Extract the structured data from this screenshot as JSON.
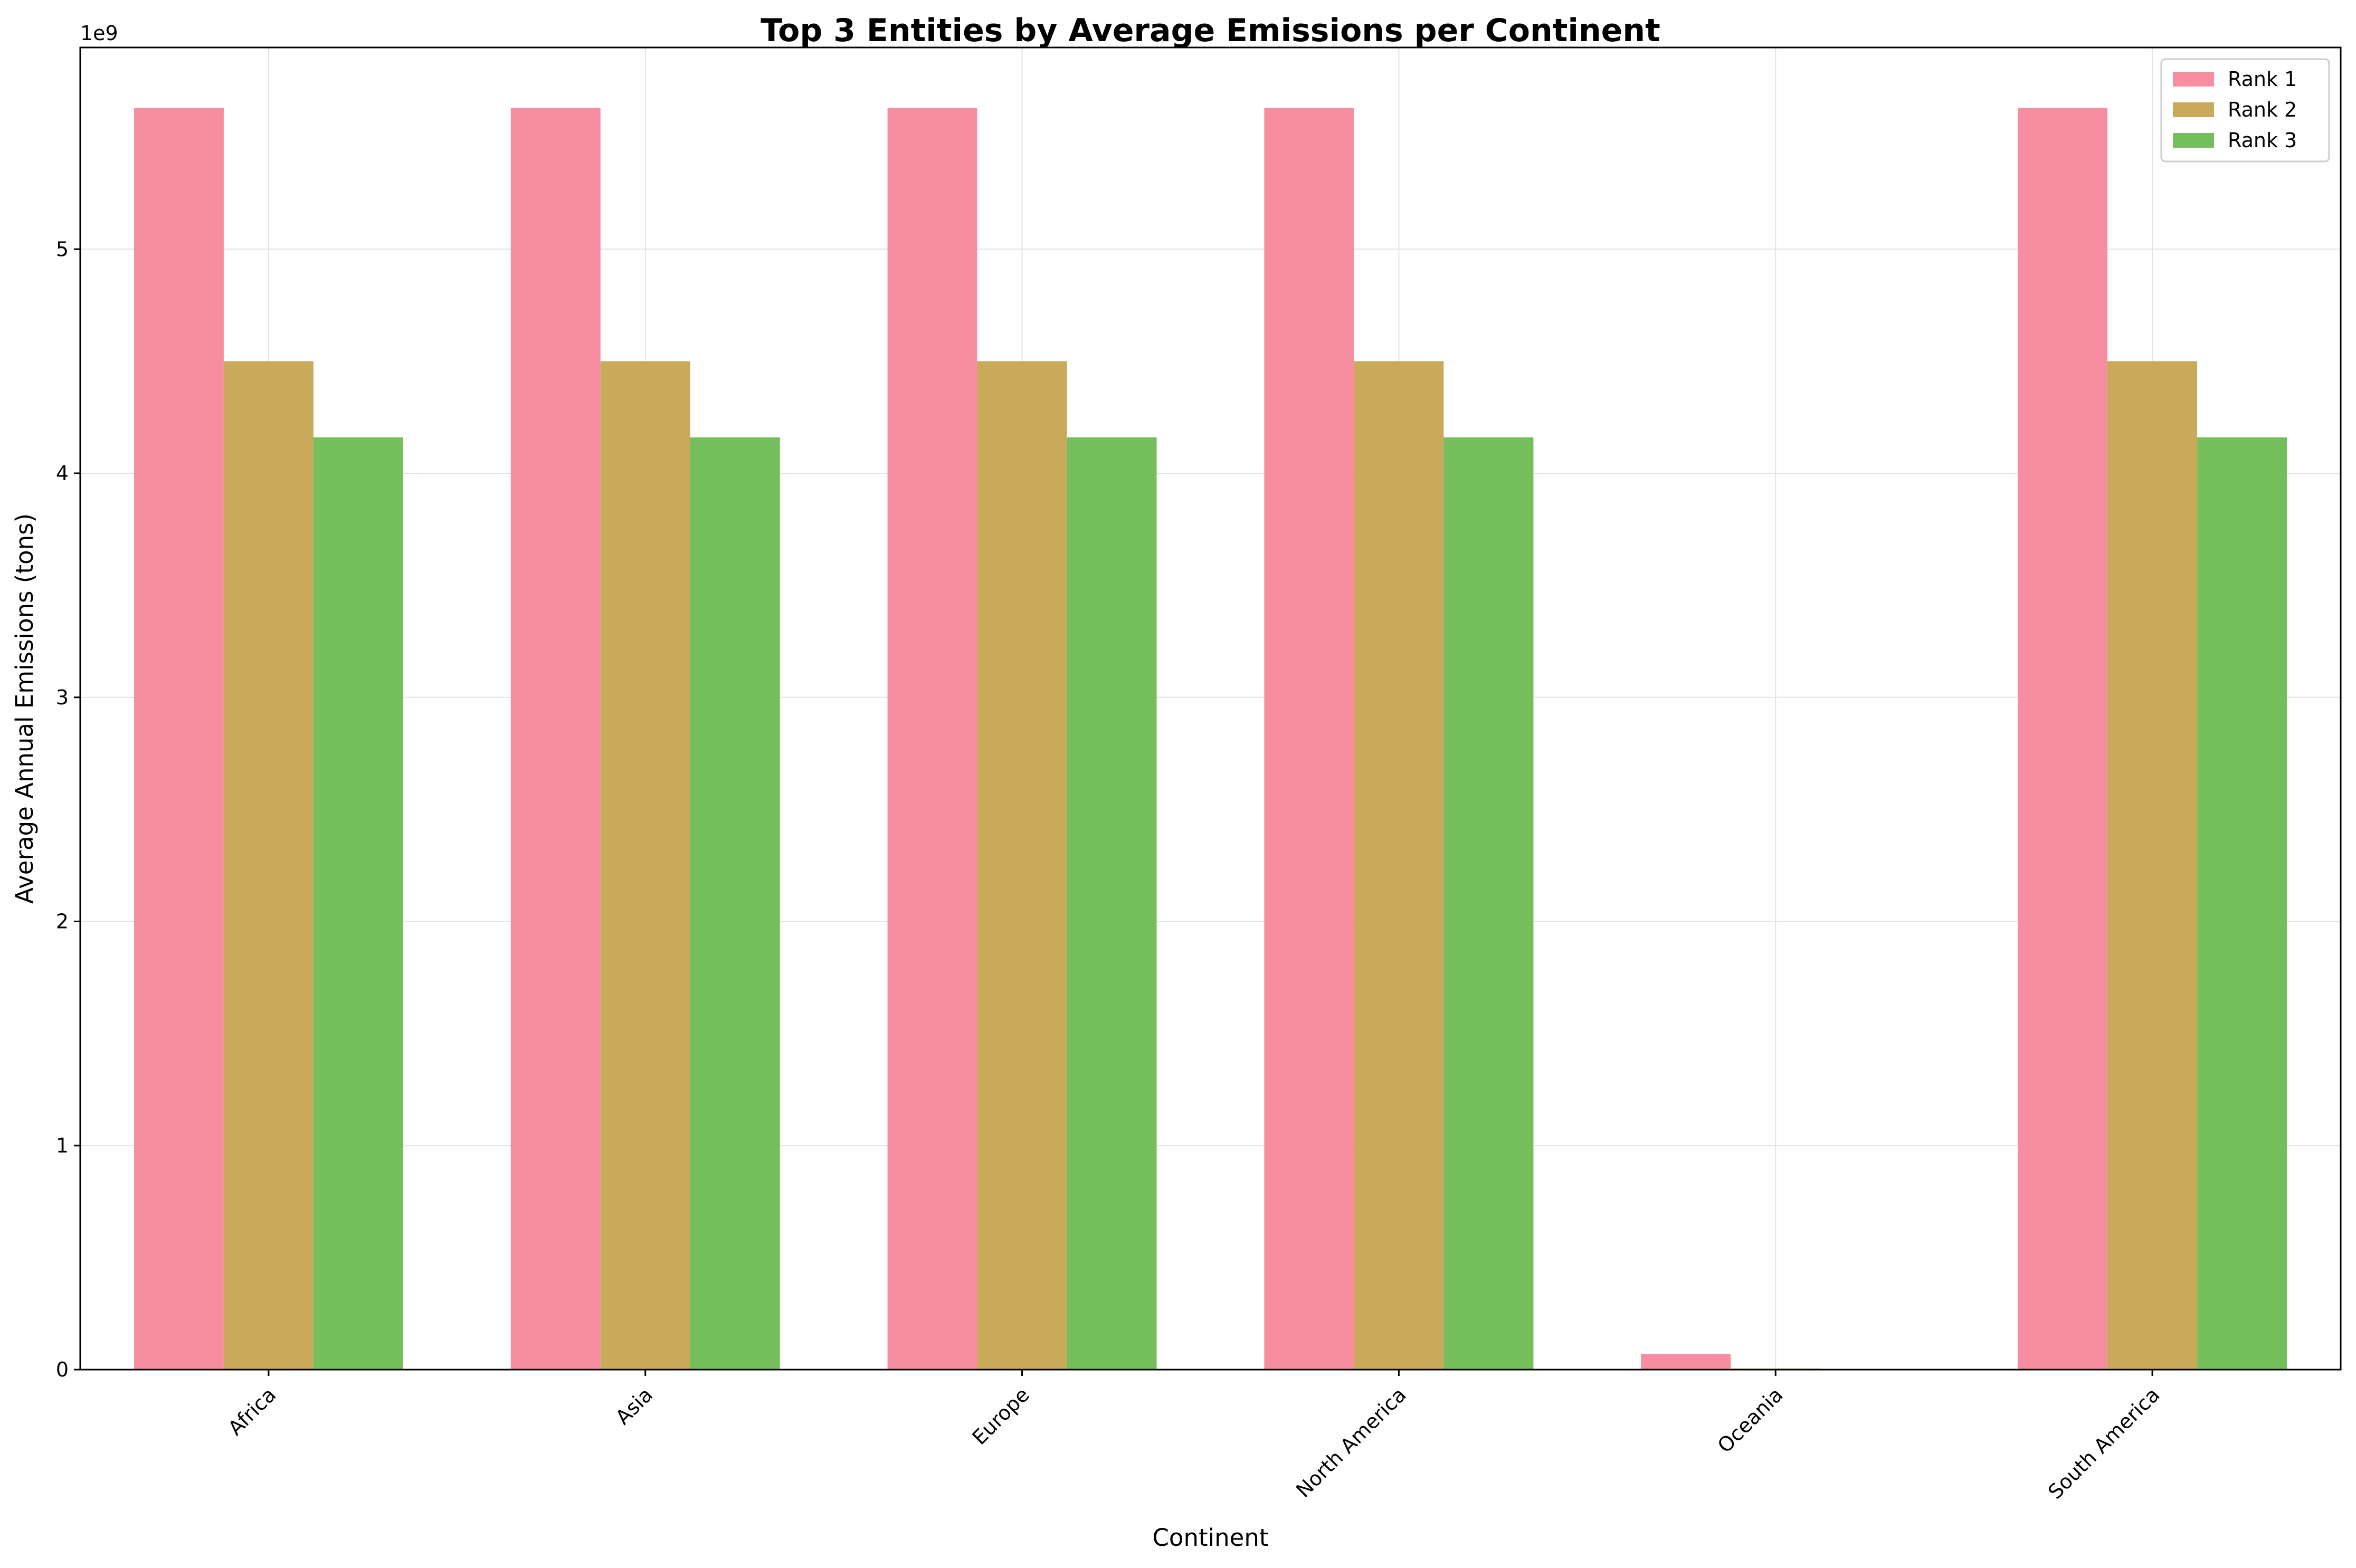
{
  "chart_data": {
    "type": "bar",
    "title": "Top 3 Entities by Average Emissions per Continent",
    "xlabel": "Continent",
    "ylabel": "Average Annual Emissions (tons)",
    "y_offset_text": "1e9",
    "categories": [
      "Africa",
      "Asia",
      "Europe",
      "North America",
      "Oceania",
      "South America"
    ],
    "series": [
      {
        "name": "Rank 1",
        "color": "#f78da0",
        "values": [
          5630000000.0,
          5630000000.0,
          5630000000.0,
          5630000000.0,
          70000000.0,
          5630000000.0
        ]
      },
      {
        "name": "Rank 2",
        "color": "#c8aa5a",
        "values": [
          4500000000.0,
          4500000000.0,
          4500000000.0,
          4500000000.0,
          5000000.0,
          4500000000.0
        ]
      },
      {
        "name": "Rank 3",
        "color": "#74bf5c",
        "values": [
          4160000000.0,
          4160000000.0,
          4160000000.0,
          4160000000.0,
          0.0,
          4160000000.0
        ]
      }
    ],
    "ylim": [
      0,
      5900000000.0
    ],
    "yticks": [
      0,
      1000000000.0,
      2000000000.0,
      3000000000.0,
      4000000000.0,
      5000000000.0
    ],
    "ytick_labels": [
      "0",
      "1",
      "2",
      "3",
      "4",
      "5"
    ],
    "grid": true,
    "legend_position": "top-right"
  }
}
